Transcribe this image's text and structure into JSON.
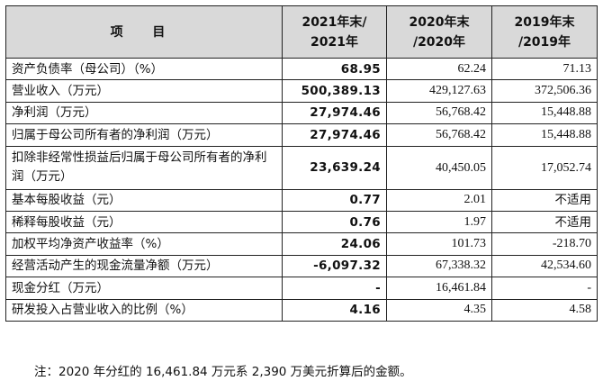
{
  "table": {
    "headers": {
      "item": "项 目",
      "col2021": "2021年末/ 2021年",
      "col2020": "2020年末 /2020年",
      "col2019": "2019年末 /2019年"
    },
    "rows": [
      {
        "label": "资产负债率（母公司）（%）",
        "v2021": "68.95",
        "v2020": "62.24",
        "v2019": "71.13"
      },
      {
        "label": "营业收入（万元）",
        "v2021": "500,389.13",
        "v2020": "429,127.63",
        "v2019": "372,506.36"
      },
      {
        "label": "净利润（万元）",
        "v2021": "27,974.46",
        "v2020": "56,768.42",
        "v2019": "15,448.88"
      },
      {
        "label": "归属于母公司所有者的净利润（万元）",
        "v2021": "27,974.46",
        "v2020": "56,768.42",
        "v2019": "15,448.88"
      },
      {
        "label": "扣除非经常性损益后归属于母公司所有者的净利润（万元）",
        "v2021": "23,639.24",
        "v2020": "40,450.05",
        "v2019": "17,052.74"
      },
      {
        "label": "基本每股收益（元）",
        "v2021": "0.77",
        "v2020": "2.01",
        "v2019": "不适用"
      },
      {
        "label": "稀释每股收益（元）",
        "v2021": "0.76",
        "v2020": "1.97",
        "v2019": "不适用"
      },
      {
        "label": "加权平均净资产收益率（%）",
        "v2021": "24.06",
        "v2020": "101.73",
        "v2019": "-218.70"
      },
      {
        "label": "经营活动产生的现金流量净额（万元）",
        "v2021": "-6,097.32",
        "v2020": "67,338.32",
        "v2019": "42,534.60"
      },
      {
        "label": "现金分红（万元）",
        "v2021": "-",
        "v2020": "16,461.84",
        "v2019": "-"
      },
      {
        "label": "研发投入占营业收入的比例（%）",
        "v2021": "4.16",
        "v2020": "4.35",
        "v2019": "4.58"
      }
    ]
  },
  "note": "注：2020 年分红的 16,461.84 万元系 2,390 万美元折算后的金额。"
}
